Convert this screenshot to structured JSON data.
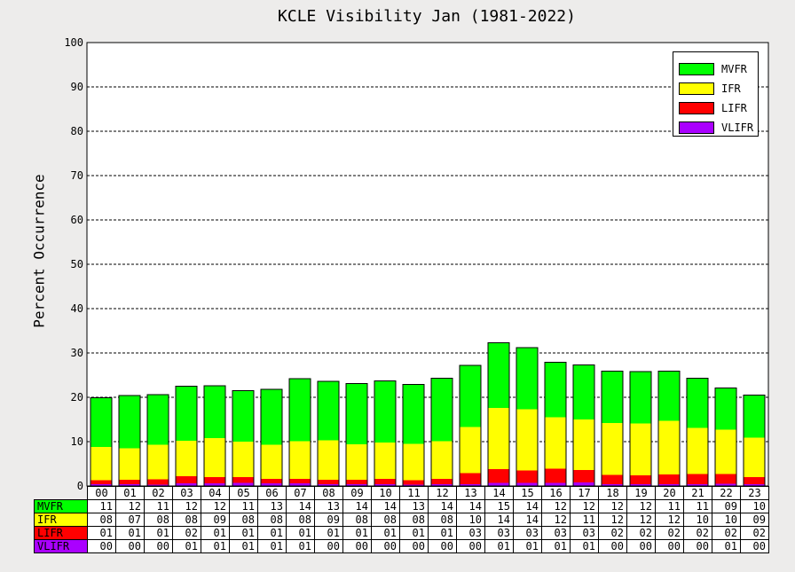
{
  "chart_data": {
    "type": "bar",
    "stacked": true,
    "title": "KCLE Visibility Jan (1981-2022)",
    "xlabel": "",
    "ylabel": "Percent Occurrence",
    "ylim": [
      0,
      100
    ],
    "yticks": [
      0,
      10,
      20,
      30,
      40,
      50,
      60,
      70,
      80,
      90,
      100
    ],
    "grid": "dashed horizontal",
    "legend_position": "top-right",
    "categories": [
      "00",
      "01",
      "02",
      "03",
      "04",
      "05",
      "06",
      "07",
      "08",
      "09",
      "10",
      "11",
      "12",
      "13",
      "14",
      "15",
      "16",
      "17",
      "18",
      "19",
      "20",
      "21",
      "22",
      "23"
    ],
    "series": [
      {
        "name": "VLIFR",
        "color": "#aa00ff",
        "values": [
          0.4,
          0.4,
          0.3,
          0.6,
          0.6,
          0.7,
          0.6,
          0.6,
          0.4,
          0.4,
          0.4,
          0.3,
          0.4,
          0.4,
          0.7,
          0.7,
          0.7,
          0.8,
          0.4,
          0.4,
          0.4,
          0.4,
          0.5,
          0.4
        ]
      },
      {
        "name": "LIFR",
        "color": "#ff0000",
        "values": [
          0.9,
          1.0,
          1.2,
          1.6,
          1.4,
          1.3,
          1.0,
          1.0,
          1.0,
          1.0,
          1.2,
          1.0,
          1.2,
          2.5,
          3.1,
          2.8,
          3.2,
          2.8,
          2.1,
          2.0,
          2.2,
          2.3,
          2.2,
          1.6
        ]
      },
      {
        "name": "IFR",
        "color": "#ffff00",
        "values": [
          7.5,
          7.1,
          7.8,
          8.0,
          8.8,
          8.0,
          7.7,
          8.5,
          8.9,
          8.0,
          8.2,
          8.2,
          8.5,
          10.4,
          13.8,
          13.8,
          11.6,
          11.4,
          11.7,
          11.7,
          12.1,
          10.4,
          10.0,
          8.9
        ]
      },
      {
        "name": "MVFR",
        "color": "#00ff00",
        "values": [
          11.1,
          11.9,
          11.3,
          12.3,
          11.8,
          11.5,
          12.5,
          14.1,
          13.3,
          13.7,
          13.9,
          13.4,
          14.2,
          13.9,
          14.7,
          13.9,
          12.4,
          12.3,
          11.7,
          11.7,
          11.2,
          11.2,
          9.4,
          9.6
        ]
      }
    ],
    "legend_order": [
      "MVFR",
      "IFR",
      "LIFR",
      "VLIFR"
    ],
    "table": {
      "rows": [
        {
          "label": "MVFR",
          "color": "#00ff00",
          "label_color": "#000000",
          "values": [
            "11",
            "12",
            "11",
            "12",
            "12",
            "11",
            "13",
            "14",
            "13",
            "14",
            "14",
            "13",
            "14",
            "14",
            "15",
            "14",
            "12",
            "12",
            "12",
            "12",
            "11",
            "11",
            "09",
            "10"
          ]
        },
        {
          "label": "IFR",
          "color": "#ffff00",
          "label_color": "#000000",
          "values": [
            "08",
            "07",
            "08",
            "08",
            "09",
            "08",
            "08",
            "08",
            "09",
            "08",
            "08",
            "08",
            "08",
            "10",
            "14",
            "14",
            "12",
            "11",
            "12",
            "12",
            "12",
            "10",
            "10",
            "09"
          ]
        },
        {
          "label": "LIFR",
          "color": "#ff0000",
          "label_color": "#000000",
          "values": [
            "01",
            "01",
            "01",
            "02",
            "01",
            "01",
            "01",
            "01",
            "01",
            "01",
            "01",
            "01",
            "01",
            "03",
            "03",
            "03",
            "03",
            "03",
            "02",
            "02",
            "02",
            "02",
            "02",
            "02"
          ]
        },
        {
          "label": "VLIFR",
          "color": "#aa00ff",
          "label_color": "#000000",
          "values": [
            "00",
            "00",
            "00",
            "01",
            "01",
            "01",
            "01",
            "01",
            "00",
            "00",
            "00",
            "00",
            "00",
            "00",
            "01",
            "01",
            "01",
            "01",
            "00",
            "00",
            "00",
            "00",
            "01",
            "00"
          ]
        }
      ]
    }
  }
}
